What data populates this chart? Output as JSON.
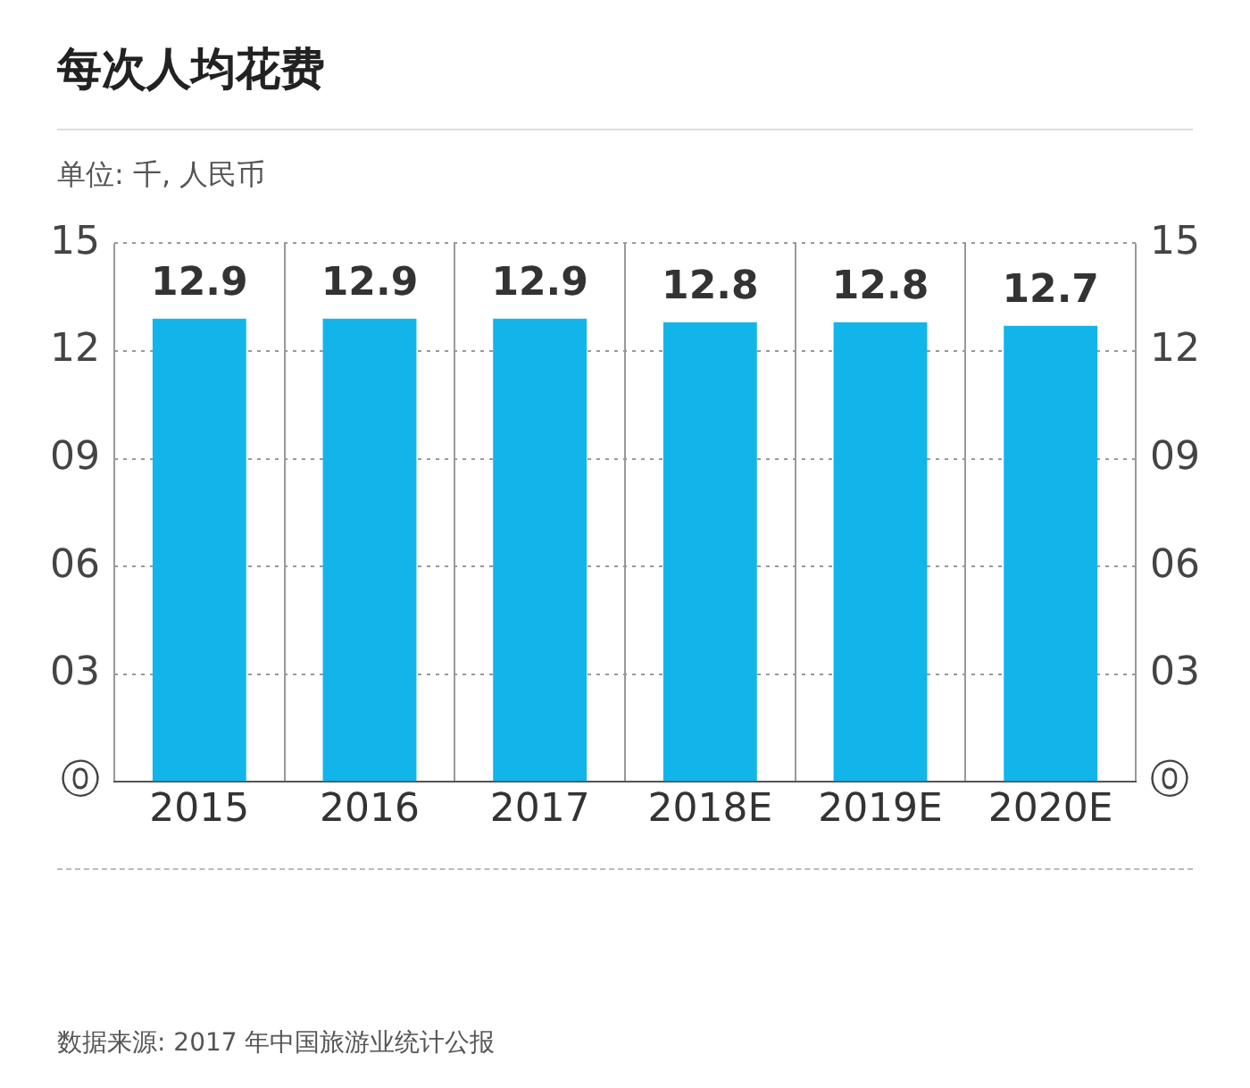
{
  "chart_data": {
    "type": "bar",
    "title": "每次人均花费",
    "subtitle": "单位: 千, 人民币",
    "categories": [
      "2015",
      "2016",
      "2017",
      "2018E",
      "2019E",
      "2020E"
    ],
    "values": [
      12.9,
      12.9,
      12.9,
      12.8,
      12.8,
      12.7
    ],
    "color": "#12b5ea",
    "ylim": [
      0,
      15
    ],
    "yticks": [
      {
        "value": 0,
        "label": "⓪"
      },
      {
        "value": 3,
        "label": "03"
      },
      {
        "value": 6,
        "label": "06"
      },
      {
        "value": 9,
        "label": "09"
      },
      {
        "value": 12,
        "label": "12"
      },
      {
        "value": 15,
        "label": "15"
      }
    ],
    "y2lim": [
      0,
      15
    ],
    "y2ticks": [
      {
        "value": 0,
        "label": "⓪"
      },
      {
        "value": 3,
        "label": "03"
      },
      {
        "value": 6,
        "label": "06"
      },
      {
        "value": 9,
        "label": "09"
      },
      {
        "value": 12,
        "label": "12"
      },
      {
        "value": 15,
        "label": "15"
      }
    ],
    "grid": true,
    "data_labels": true,
    "annotations": [
      "数据来源: 2017 年中国旅游业统计公报"
    ]
  }
}
